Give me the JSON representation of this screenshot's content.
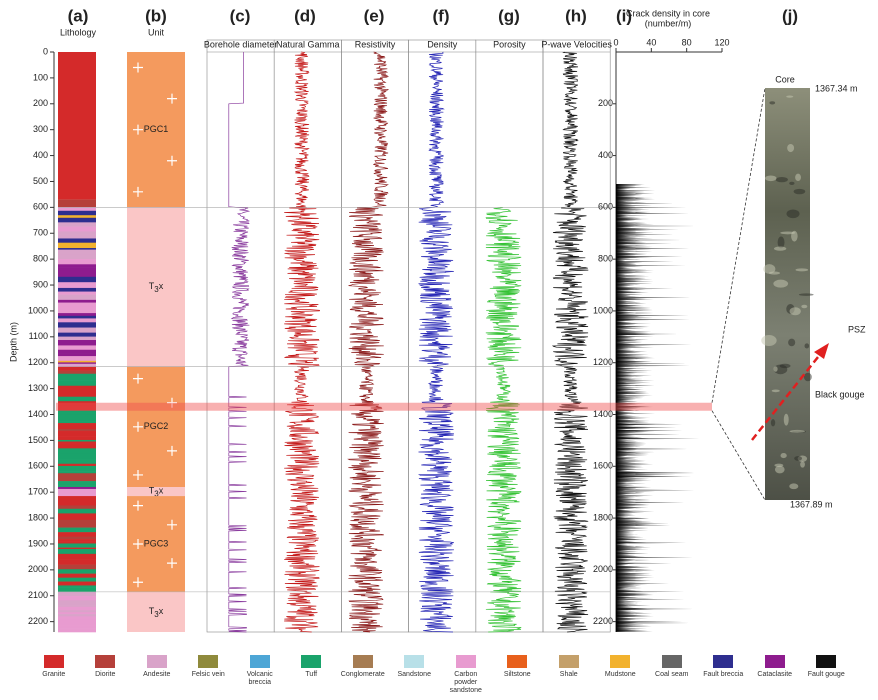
{
  "panel_labels": [
    "(a)",
    "(b)",
    "(c)",
    "(d)",
    "(e)",
    "(f)",
    "(g)",
    "(h)",
    "(i)",
    "(j)"
  ],
  "column_titles": {
    "lithology": "Lithology",
    "unit": "Unit"
  },
  "depth_axis": {
    "label": "Depth (m)",
    "lim": [
      0,
      2240
    ],
    "ticks": [
      0,
      100,
      200,
      300,
      400,
      500,
      600,
      700,
      800,
      900,
      1000,
      1100,
      1200,
      1300,
      1400,
      1500,
      1600,
      1700,
      1800,
      1900,
      2000,
      2100,
      2200
    ]
  },
  "units": [
    {
      "name": "PGC1",
      "top": 0,
      "bottom": 600
    },
    {
      "name": {
        "base": "T",
        "sub": "3",
        "rest": "x"
      },
      "top": 600,
      "bottom": 1215
    },
    {
      "name": "PGC2",
      "top": 1215,
      "bottom": 1680
    },
    {
      "name": {
        "base": "T",
        "sub": "3",
        "rest": "x"
      },
      "top": 1680,
      "bottom": 1715
    },
    {
      "name": "PGC3",
      "top": 1715,
      "bottom": 2085
    },
    {
      "name": {
        "base": "T",
        "sub": "3",
        "rest": "x"
      },
      "top": 2085,
      "bottom": 2240
    }
  ],
  "log_tracks": [
    {
      "title": "Borehole diameter",
      "color": "#8a3c9e"
    },
    {
      "title": "Natural Gamma",
      "color": "#c41818"
    },
    {
      "title": "Resistivity",
      "color": "#8b1a1a"
    },
    {
      "title": "Density",
      "color": "#2424b4"
    },
    {
      "title": "Porosity",
      "color": "#34c234"
    },
    {
      "title": "P-wave Velocities",
      "color": "#111111"
    }
  ],
  "crack_density": {
    "title": "Crack density in core",
    "unit": "(number/m)",
    "xlim": [
      0,
      120
    ],
    "xticks": [
      0,
      40,
      80,
      120
    ],
    "depth_ticks": [
      200,
      400,
      600,
      800,
      1000,
      1200,
      1400,
      1600,
      1800,
      2000,
      2200
    ]
  },
  "psz_depth": 1370,
  "core": {
    "title": "Core",
    "top_label": "1367.34 m",
    "bottom_label": "1367.89 m",
    "gouge_label": "Black gouge",
    "psz_label": "PSZ"
  },
  "legend": [
    {
      "name": "Granite",
      "color": "#d42a2a"
    },
    {
      "name": "Diorite",
      "color": "#b5403a"
    },
    {
      "name": "Andesite",
      "color": "#d9a3c9"
    },
    {
      "name": "Felsic vein",
      "color": "#8f8a3c"
    },
    {
      "name": "Volcanic breccia",
      "color": "#4da6d6"
    },
    {
      "name": "Tuff",
      "color": "#1aa36b"
    },
    {
      "name": "Conglomerate",
      "color": "#a67c52"
    },
    {
      "name": "Sandstone",
      "color": "#b8e0e8"
    },
    {
      "name": "Carbon powder sandstone",
      "color": "#e89bd0"
    },
    {
      "name": "Siltstone",
      "color": "#e8601c"
    },
    {
      "name": "Shale",
      "color": "#c4a06a"
    },
    {
      "name": "Mudstone",
      "color": "#f2b22e"
    },
    {
      "name": "Coal seam",
      "color": "#666666"
    },
    {
      "name": "Fault breccia",
      "color": "#2e2e8f"
    },
    {
      "name": "Cataclasite",
      "color": "#8e1c8e"
    },
    {
      "name": "Fault gouge",
      "color": "#111111"
    }
  ]
}
